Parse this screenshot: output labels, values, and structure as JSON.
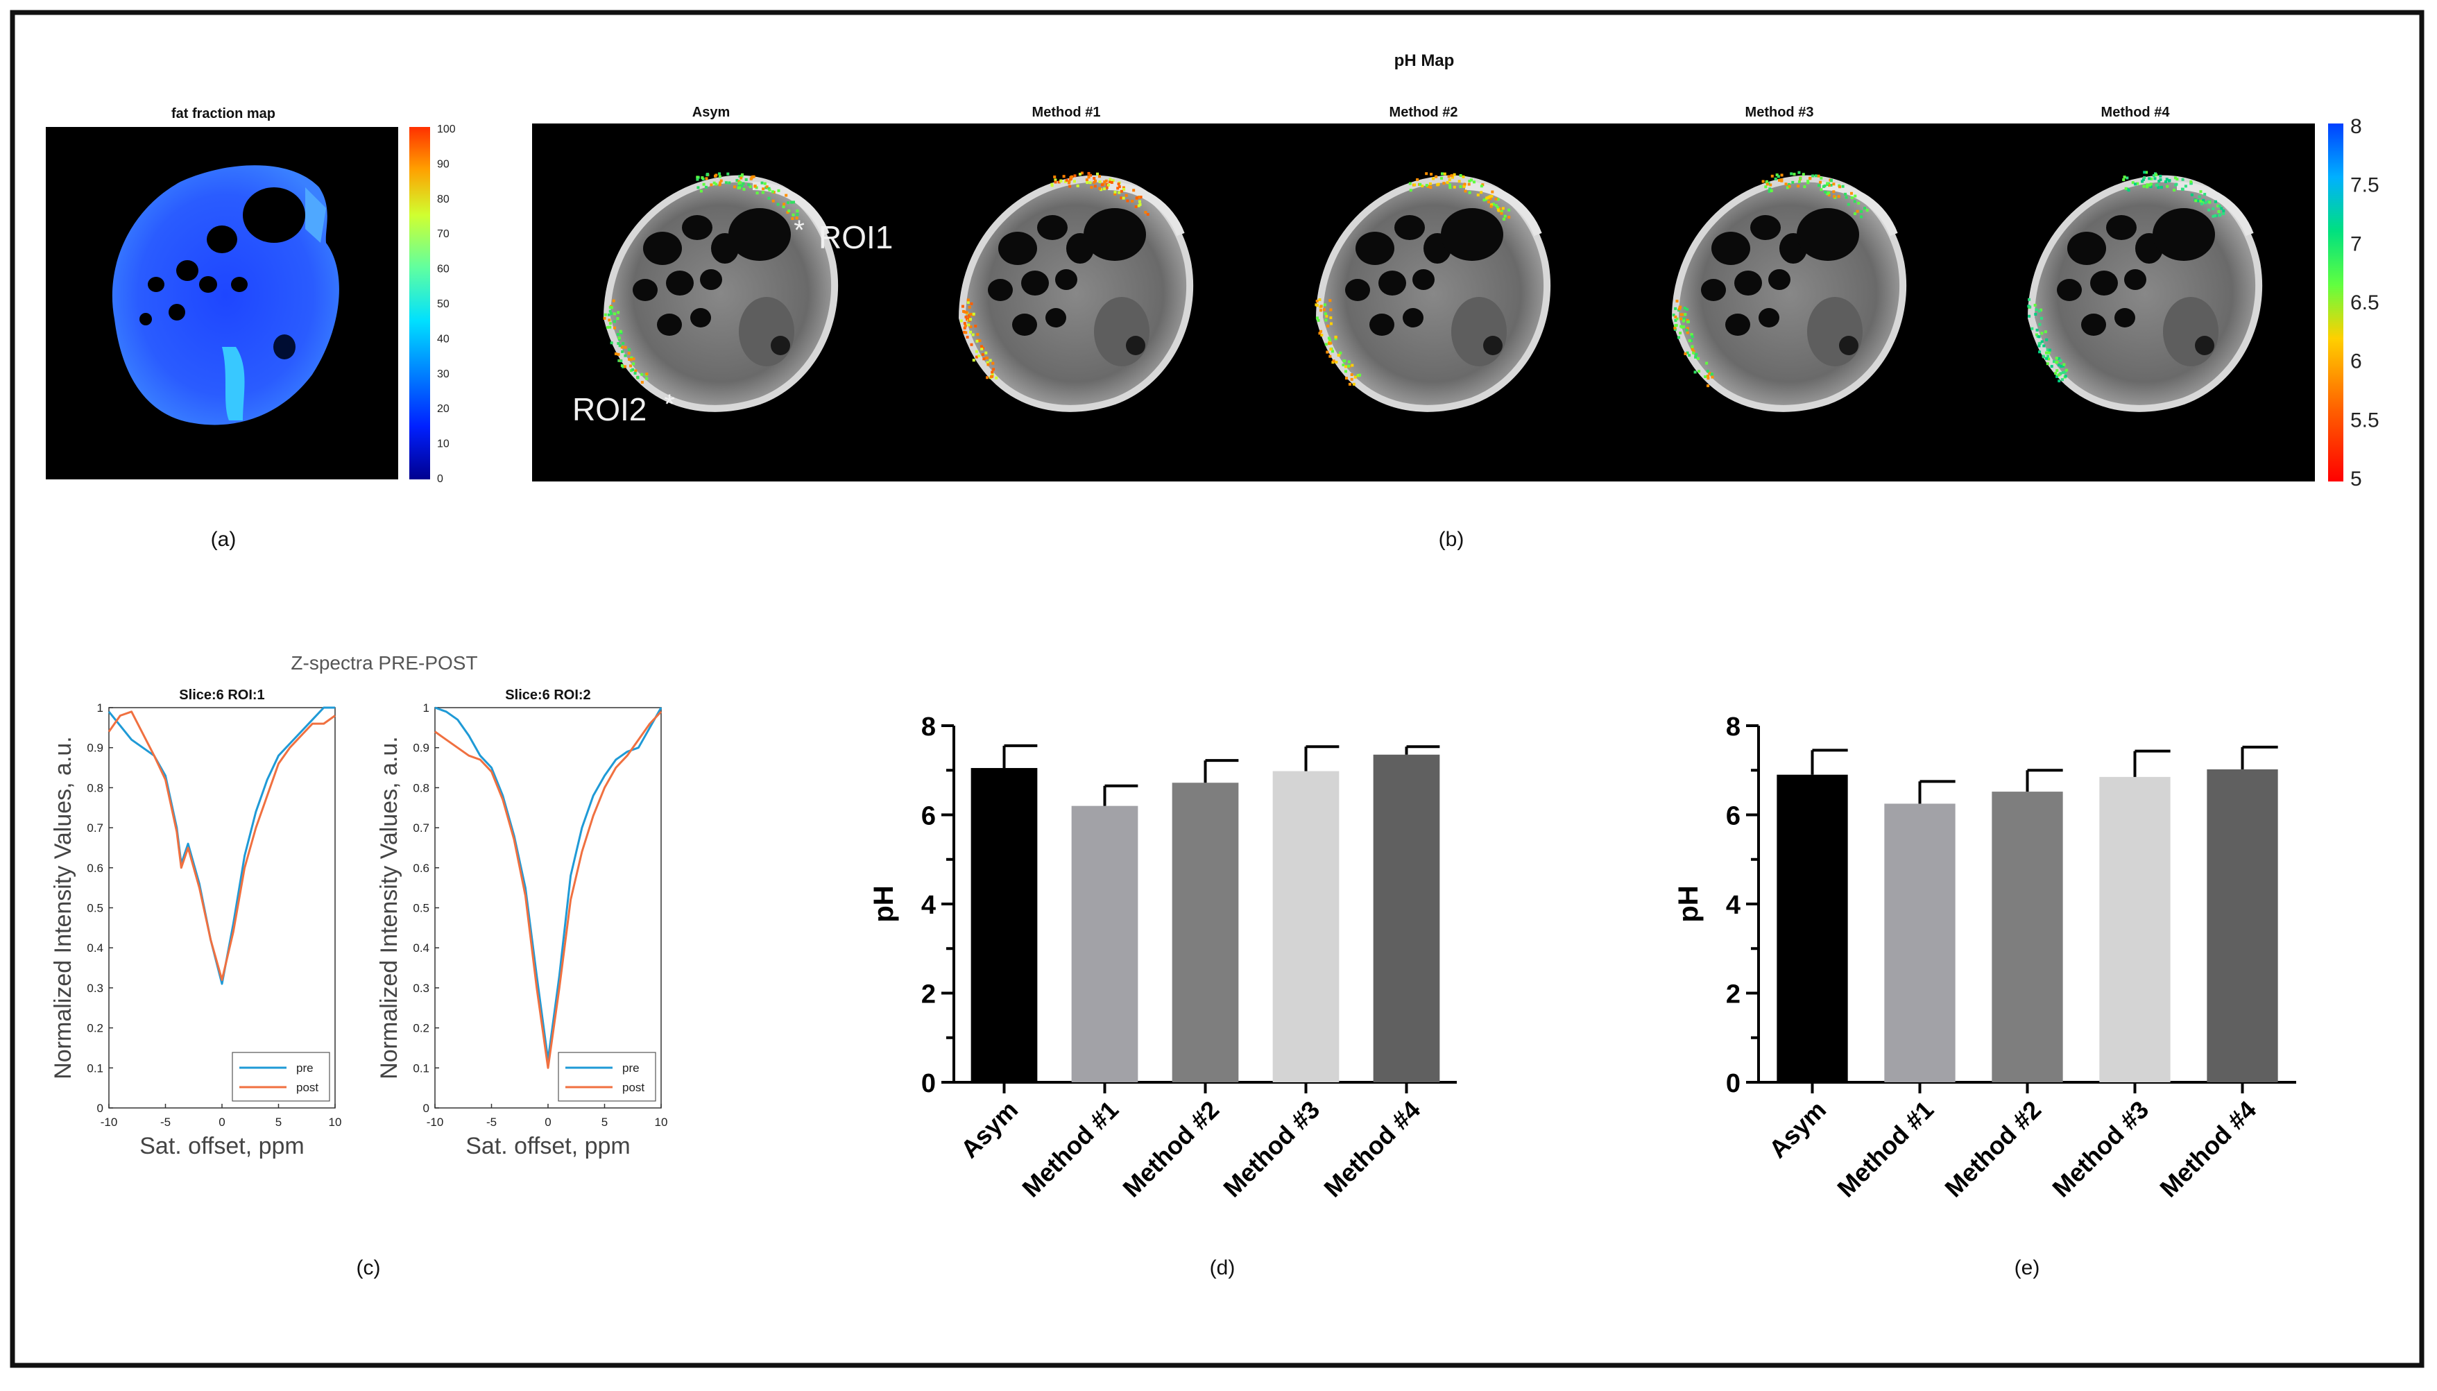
{
  "panels": {
    "a": {
      "label": "(a)",
      "title": "fat fraction map",
      "colorbar_ticks": [
        "100",
        "90",
        "80",
        "70",
        "60",
        "50",
        "40",
        "30",
        "20",
        "10",
        "0"
      ]
    },
    "b": {
      "label": "(b)",
      "title": "pH Map",
      "image_titles": [
        "Asym",
        "Method #1",
        "Method #2",
        "Method #3",
        "Method #4"
      ],
      "roi_labels": [
        "ROI1",
        "ROI2"
      ],
      "colorbar_ticks": [
        "8",
        "7.5",
        "7",
        "6.5",
        "6",
        "5.5",
        "5"
      ]
    },
    "c": {
      "label": "(c)",
      "title": "Z-spectra PRE-POST",
      "subplots": [
        "Slice:6 ROI:1",
        "Slice:6 ROI:2"
      ],
      "ylabel": "Normalized Intensity Values, a.u.",
      "xlabel": "Sat. offset, ppm",
      "legend": [
        "pre",
        "post"
      ]
    },
    "d": {
      "label": "(d)"
    },
    "e": {
      "label": "(e)"
    }
  },
  "colors": {
    "pre": "#1f9ad6",
    "post": "#f07040"
  },
  "chart_data": [
    {
      "type": "line",
      "title": "Slice:6 ROI:1",
      "xlabel": "Sat. offset, ppm",
      "ylabel": "Normalized Intensity Values, a.u.",
      "xlim": [
        -10,
        10
      ],
      "ylim": [
        0,
        1
      ],
      "xticks": [
        "-10",
        "-5",
        "0",
        "5",
        "10"
      ],
      "yticks": [
        "0",
        "0.1",
        "0.2",
        "0.3",
        "0.4",
        "0.5",
        "0.6",
        "0.7",
        "0.8",
        "0.9",
        "1"
      ],
      "series": [
        {
          "name": "pre",
          "x": [
            -10,
            -8,
            -6,
            -5,
            -4,
            -3.6,
            -3,
            -2,
            -1,
            0,
            1,
            2,
            3,
            4,
            5,
            6,
            7,
            8,
            9,
            10
          ],
          "y": [
            0.99,
            0.92,
            0.88,
            0.83,
            0.7,
            0.61,
            0.66,
            0.56,
            0.42,
            0.31,
            0.46,
            0.63,
            0.74,
            0.82,
            0.88,
            0.91,
            0.94,
            0.97,
            1.0,
            1.0
          ]
        },
        {
          "name": "post",
          "x": [
            -10,
            -9,
            -8,
            -6,
            -5,
            -4,
            -3.6,
            -3,
            -2,
            -1,
            0,
            1,
            2,
            3,
            4,
            5,
            6,
            7,
            8,
            9,
            10
          ],
          "y": [
            0.94,
            0.98,
            0.99,
            0.88,
            0.82,
            0.69,
            0.6,
            0.65,
            0.55,
            0.42,
            0.32,
            0.44,
            0.6,
            0.7,
            0.78,
            0.86,
            0.9,
            0.93,
            0.96,
            0.96,
            0.98
          ]
        }
      ]
    },
    {
      "type": "line",
      "title": "Slice:6 ROI:2",
      "xlabel": "Sat. offset, ppm",
      "ylabel": "Normalized Intensity Values, a.u.",
      "xlim": [
        -10,
        10
      ],
      "ylim": [
        0,
        1
      ],
      "xticks": [
        "-10",
        "-5",
        "0",
        "5",
        "10"
      ],
      "yticks": [
        "0",
        "0.1",
        "0.2",
        "0.3",
        "0.4",
        "0.5",
        "0.6",
        "0.7",
        "0.8",
        "0.9",
        "1"
      ],
      "series": [
        {
          "name": "pre",
          "x": [
            -10,
            -9,
            -8,
            -7,
            -6,
            -5,
            -4,
            -3,
            -2,
            -1,
            0,
            1,
            2,
            3,
            4,
            5,
            6,
            7,
            8,
            9,
            10
          ],
          "y": [
            1.0,
            0.99,
            0.97,
            0.93,
            0.88,
            0.85,
            0.78,
            0.68,
            0.55,
            0.33,
            0.12,
            0.33,
            0.58,
            0.7,
            0.78,
            0.83,
            0.87,
            0.89,
            0.9,
            0.95,
            1.0
          ]
        },
        {
          "name": "post",
          "x": [
            -10,
            -9,
            -8,
            -7,
            -6,
            -5,
            -4,
            -3,
            -2,
            -1,
            0,
            1,
            2,
            3,
            4,
            5,
            6,
            7,
            8,
            9,
            10
          ],
          "y": [
            0.94,
            0.92,
            0.9,
            0.88,
            0.87,
            0.84,
            0.77,
            0.67,
            0.53,
            0.3,
            0.1,
            0.3,
            0.52,
            0.64,
            0.73,
            0.8,
            0.85,
            0.88,
            0.92,
            0.96,
            0.99
          ]
        }
      ]
    },
    {
      "type": "bar",
      "categories": [
        "Asym",
        "Method #1",
        "Method #2",
        "Method #3",
        "Method #4"
      ],
      "values": [
        7.05,
        6.2,
        6.72,
        6.98,
        7.35
      ],
      "errors": [
        0.5,
        0.45,
        0.5,
        0.55,
        0.18
      ],
      "colors": [
        "#000000",
        "#a2a2a7",
        "#7e7e7e",
        "#d4d4d4",
        "#606060"
      ],
      "ylabel": "pH",
      "ylim": [
        0,
        8
      ],
      "yticks": [
        "0",
        "2",
        "4",
        "6",
        "8"
      ]
    },
    {
      "type": "bar",
      "categories": [
        "Asym",
        "Method #1",
        "Method #2",
        "Method #3",
        "Method #4"
      ],
      "values": [
        6.9,
        6.25,
        6.52,
        6.85,
        7.02
      ],
      "errors": [
        0.55,
        0.5,
        0.48,
        0.58,
        0.5
      ],
      "colors": [
        "#000000",
        "#a2a2a7",
        "#7e7e7e",
        "#d4d4d4",
        "#606060"
      ],
      "ylabel": "pH",
      "ylim": [
        0,
        8
      ],
      "yticks": [
        "0",
        "2",
        "4",
        "6",
        "8"
      ]
    }
  ]
}
